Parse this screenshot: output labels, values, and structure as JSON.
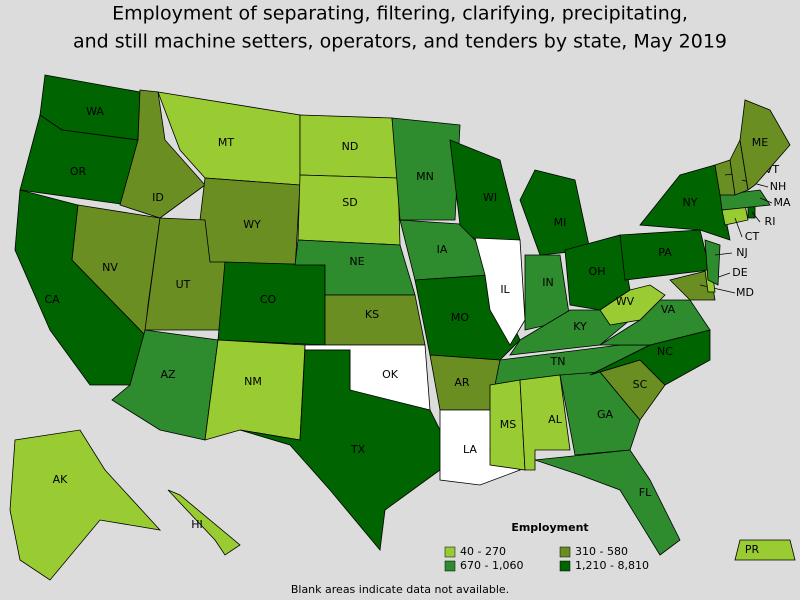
{
  "title": "Employment of separating, filtering, clarifying, precipitating,",
  "title_line2": "and still machine setters, operators, and tenders by state, May 2019",
  "legend": {
    "title": "Employment",
    "items": [
      {
        "label": "40 - 270",
        "color": "#99cc33"
      },
      {
        "label": "310 - 580",
        "color": "#6b8e23"
      },
      {
        "label": "670 - 1,060",
        "color": "#2e8b2e"
      },
      {
        "label": "1,210 - 8,810",
        "color": "#006400"
      }
    ]
  },
  "footnote": "Blank areas indicate data not available.",
  "states": [
    {
      "abbr": "WA",
      "range": "1,210 - 8,810"
    },
    {
      "abbr": "OR",
      "range": "1,210 - 8,810"
    },
    {
      "abbr": "CA",
      "range": "1,210 - 8,810"
    },
    {
      "abbr": "NV",
      "range": "310 - 580"
    },
    {
      "abbr": "ID",
      "range": "310 - 580"
    },
    {
      "abbr": "MT",
      "range": "40 - 270"
    },
    {
      "abbr": "WY",
      "range": "310 - 580"
    },
    {
      "abbr": "UT",
      "range": "310 - 580"
    },
    {
      "abbr": "CO",
      "range": "1,210 - 8,810"
    },
    {
      "abbr": "AZ",
      "range": "670 - 1,060"
    },
    {
      "abbr": "NM",
      "range": "40 - 270"
    },
    {
      "abbr": "ND",
      "range": "40 - 270"
    },
    {
      "abbr": "SD",
      "range": "40 - 270"
    },
    {
      "abbr": "NE",
      "range": "670 - 1,060"
    },
    {
      "abbr": "KS",
      "range": "310 - 580"
    },
    {
      "abbr": "OK",
      "range": null
    },
    {
      "abbr": "TX",
      "range": "1,210 - 8,810"
    },
    {
      "abbr": "MN",
      "range": "670 - 1,060"
    },
    {
      "abbr": "IA",
      "range": "670 - 1,060"
    },
    {
      "abbr": "MO",
      "range": "1,210 - 8,810"
    },
    {
      "abbr": "AR",
      "range": "310 - 580"
    },
    {
      "abbr": "LA",
      "range": null
    },
    {
      "abbr": "WI",
      "range": "1,210 - 8,810"
    },
    {
      "abbr": "IL",
      "range": null
    },
    {
      "abbr": "MI",
      "range": "1,210 - 8,810"
    },
    {
      "abbr": "IN",
      "range": "670 - 1,060"
    },
    {
      "abbr": "OH",
      "range": "1,210 - 8,810"
    },
    {
      "abbr": "KY",
      "range": "670 - 1,060"
    },
    {
      "abbr": "TN",
      "range": "670 - 1,060"
    },
    {
      "abbr": "MS",
      "range": "40 - 270"
    },
    {
      "abbr": "AL",
      "range": "40 - 270"
    },
    {
      "abbr": "GA",
      "range": "670 - 1,060"
    },
    {
      "abbr": "FL",
      "range": "670 - 1,060"
    },
    {
      "abbr": "SC",
      "range": "310 - 580"
    },
    {
      "abbr": "NC",
      "range": "1,210 - 8,810"
    },
    {
      "abbr": "VA",
      "range": "670 - 1,060"
    },
    {
      "abbr": "WV",
      "range": "40 - 270"
    },
    {
      "abbr": "PA",
      "range": "1,210 - 8,810"
    },
    {
      "abbr": "NY",
      "range": "1,210 - 8,810"
    },
    {
      "abbr": "MD",
      "range": "310 - 580"
    },
    {
      "abbr": "DE",
      "range": "40 - 270"
    },
    {
      "abbr": "NJ",
      "range": "670 - 1,060"
    },
    {
      "abbr": "CT",
      "range": "40 - 270"
    },
    {
      "abbr": "RI",
      "range": "1,210 - 8,810"
    },
    {
      "abbr": "MA",
      "range": "670 - 1,060"
    },
    {
      "abbr": "VT",
      "range": "310 - 580"
    },
    {
      "abbr": "NH",
      "range": "310 - 580"
    },
    {
      "abbr": "ME",
      "range": "310 - 580"
    },
    {
      "abbr": "AK",
      "range": "40 - 270"
    },
    {
      "abbr": "HI",
      "range": "40 - 270"
    },
    {
      "abbr": "PR",
      "range": "40 - 270"
    }
  ]
}
